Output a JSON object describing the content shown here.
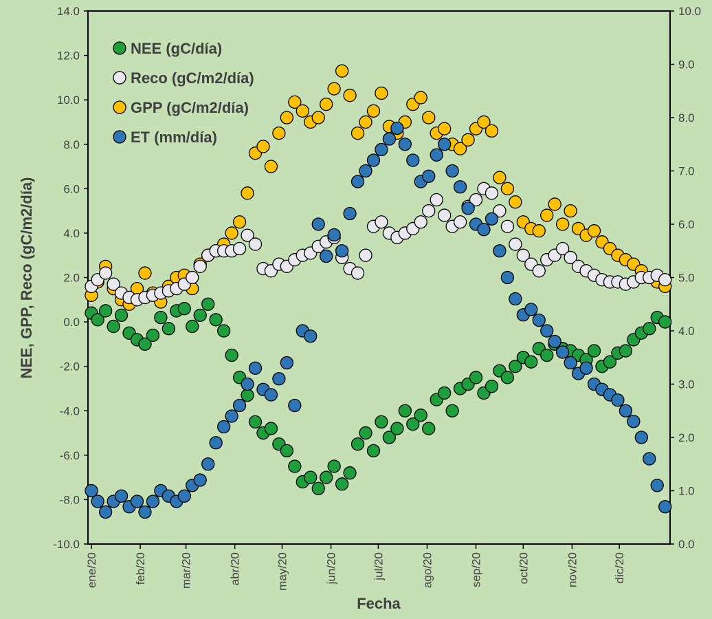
{
  "chart_data": {
    "type": "scatter",
    "title": "",
    "xlabel": "Fecha",
    "ylabel": "NEE, GPP, Reco (gC/m2/día)",
    "y2label": "",
    "x_unit": "day of year 2020",
    "xlim": [
      1,
      366
    ],
    "ylim": [
      -10,
      14
    ],
    "y2lim": [
      0,
      10
    ],
    "y_ticks": [
      "14.0",
      "12.0",
      "10.0",
      "8.0",
      "6.0",
      "4.0",
      "2.0",
      "0.0",
      "-2.0",
      "-4.0",
      "-6.0",
      "-8.0",
      "-10.0"
    ],
    "y2_ticks": [
      "10.0",
      "9.0",
      "8.0",
      "7.0",
      "6.0",
      "5.0",
      "4.0",
      "3.0",
      "2.0",
      "1.0",
      "0.0"
    ],
    "x_ticks": [
      "ene/20",
      "feb/20",
      "mar/20",
      "abr/20",
      "may/20",
      "jun/20",
      "jul/20",
      "ago/20",
      "sep/20",
      "oct/20",
      "nov/20",
      "dic/20"
    ],
    "x_tick_days": [
      1,
      32,
      61,
      92,
      122,
      153,
      183,
      214,
      245,
      275,
      306,
      336
    ],
    "grid": false,
    "legend_position": "top-left",
    "series": [
      {
        "name": "NEE (gC/día)",
        "color": "#1f9e3e",
        "axis": "left",
        "x": [
          1,
          5,
          10,
          15,
          20,
          25,
          30,
          35,
          40,
          45,
          50,
          55,
          60,
          65,
          70,
          75,
          80,
          85,
          90,
          95,
          100,
          105,
          110,
          115,
          120,
          125,
          130,
          135,
          140,
          145,
          150,
          155,
          160,
          165,
          170,
          175,
          180,
          185,
          190,
          195,
          200,
          205,
          210,
          215,
          220,
          225,
          230,
          235,
          240,
          245,
          250,
          255,
          260,
          265,
          270,
          275,
          280,
          285,
          290,
          295,
          300,
          305,
          310,
          315,
          320,
          325,
          330,
          335,
          340,
          345,
          350,
          355,
          360,
          365
        ],
        "y": [
          0.4,
          0.1,
          0.5,
          -0.2,
          0.3,
          -0.5,
          -0.8,
          -1.0,
          -0.6,
          0.2,
          -0.3,
          0.5,
          0.6,
          -0.2,
          0.3,
          0.8,
          0.1,
          -0.4,
          -1.5,
          -2.5,
          -3.3,
          -4.5,
          -5.0,
          -4.8,
          -5.5,
          -5.8,
          -6.5,
          -7.2,
          -7.0,
          -7.5,
          -7.0,
          -6.5,
          -7.3,
          -6.8,
          -5.5,
          -5.0,
          -5.8,
          -4.5,
          -5.2,
          -4.8,
          -4.0,
          -4.6,
          -4.2,
          -4.8,
          -3.5,
          -3.2,
          -4.0,
          -3.0,
          -2.8,
          -2.5,
          -3.2,
          -2.9,
          -2.2,
          -2.5,
          -2.0,
          -1.6,
          -1.8,
          -1.2,
          -1.5,
          -1.0,
          -1.2,
          -1.3,
          -1.5,
          -1.7,
          -1.3,
          -2.0,
          -1.8,
          -1.4,
          -1.3,
          -0.8,
          -0.5,
          -0.3,
          0.2,
          0.0
        ]
      },
      {
        "name": "Reco (gC/m2/día)",
        "color": "#e8e8ee",
        "axis": "left",
        "x": [
          1,
          5,
          10,
          15,
          20,
          25,
          30,
          35,
          40,
          45,
          50,
          55,
          60,
          65,
          70,
          75,
          80,
          85,
          90,
          95,
          100,
          105,
          110,
          115,
          120,
          125,
          130,
          135,
          140,
          145,
          150,
          155,
          160,
          165,
          170,
          175,
          180,
          185,
          190,
          195,
          200,
          205,
          210,
          215,
          220,
          225,
          230,
          235,
          240,
          245,
          250,
          255,
          260,
          265,
          270,
          275,
          280,
          285,
          290,
          295,
          300,
          305,
          310,
          315,
          320,
          325,
          330,
          335,
          340,
          345,
          350,
          355,
          360,
          365
        ],
        "y": [
          1.6,
          1.9,
          2.2,
          1.7,
          1.3,
          1.1,
          1.0,
          1.1,
          1.2,
          1.3,
          1.4,
          1.5,
          1.7,
          2.0,
          2.5,
          3.0,
          3.2,
          3.2,
          3.2,
          3.3,
          3.9,
          3.5,
          2.4,
          2.3,
          2.6,
          2.5,
          2.8,
          3.0,
          3.1,
          3.4,
          3.6,
          3.8,
          2.9,
          2.4,
          2.2,
          3.0,
          4.3,
          4.5,
          4.0,
          3.8,
          4.0,
          4.2,
          4.5,
          5.0,
          5.5,
          4.8,
          4.3,
          4.5,
          5.2,
          5.5,
          6.0,
          5.8,
          5.0,
          4.3,
          3.5,
          3.0,
          2.6,
          2.3,
          2.8,
          3.0,
          3.3,
          2.9,
          2.5,
          2.3,
          2.1,
          1.9,
          1.8,
          1.8,
          1.7,
          1.8,
          2.0,
          2.0,
          2.1,
          1.9
        ]
      },
      {
        "name": "GPP (gC/m2/día)",
        "color": "#ffc000",
        "axis": "left",
        "x": [
          1,
          5,
          10,
          15,
          20,
          25,
          30,
          35,
          40,
          45,
          50,
          55,
          60,
          65,
          70,
          75,
          80,
          85,
          90,
          95,
          100,
          105,
          110,
          115,
          120,
          125,
          130,
          135,
          140,
          145,
          150,
          155,
          160,
          165,
          170,
          175,
          180,
          185,
          190,
          195,
          200,
          205,
          210,
          215,
          220,
          225,
          230,
          235,
          240,
          245,
          250,
          255,
          260,
          265,
          270,
          275,
          280,
          285,
          290,
          295,
          300,
          305,
          310,
          315,
          320,
          325,
          330,
          335,
          340,
          345,
          350,
          355,
          360,
          365
        ],
        "y": [
          1.2,
          1.8,
          2.5,
          1.5,
          1.0,
          0.8,
          1.5,
          2.2,
          1.3,
          0.9,
          1.6,
          2.0,
          2.1,
          1.5,
          2.6,
          3.0,
          3.2,
          3.5,
          4.0,
          4.5,
          5.8,
          7.6,
          7.9,
          7.0,
          8.5,
          9.2,
          9.9,
          9.5,
          9.0,
          9.2,
          9.8,
          10.5,
          11.3,
          10.2,
          8.5,
          9.0,
          9.5,
          10.3,
          8.8,
          8.5,
          9.0,
          9.8,
          10.1,
          9.2,
          8.5,
          8.7,
          8.0,
          7.8,
          8.2,
          8.7,
          9.0,
          8.6,
          6.5,
          6.0,
          5.4,
          4.5,
          4.2,
          4.1,
          4.8,
          5.3,
          4.4,
          5.0,
          4.2,
          3.9,
          4.1,
          3.6,
          3.3,
          3.0,
          2.8,
          2.6,
          2.3,
          2.0,
          1.8,
          1.6
        ]
      },
      {
        "name": "ET (mm/día)",
        "color": "#2e75b6",
        "axis": "right",
        "x": [
          1,
          5,
          10,
          15,
          20,
          25,
          30,
          35,
          40,
          45,
          50,
          55,
          60,
          65,
          70,
          75,
          80,
          85,
          90,
          95,
          100,
          105,
          110,
          115,
          120,
          125,
          130,
          135,
          140,
          145,
          150,
          155,
          160,
          165,
          170,
          175,
          180,
          185,
          190,
          195,
          200,
          205,
          210,
          215,
          220,
          225,
          230,
          235,
          240,
          245,
          250,
          255,
          260,
          265,
          270,
          275,
          280,
          285,
          290,
          295,
          300,
          305,
          310,
          315,
          320,
          325,
          330,
          335,
          340,
          345,
          350,
          355,
          360,
          365
        ],
        "y": [
          1.0,
          0.8,
          0.6,
          0.8,
          0.9,
          0.7,
          0.8,
          0.6,
          0.8,
          1.0,
          0.9,
          0.8,
          0.9,
          1.1,
          1.2,
          1.5,
          1.9,
          2.2,
          2.4,
          2.6,
          3.0,
          3.3,
          2.9,
          2.8,
          3.1,
          3.4,
          2.6,
          4.0,
          3.9,
          6.0,
          5.4,
          5.8,
          5.5,
          6.2,
          6.8,
          7.0,
          7.2,
          7.4,
          7.6,
          7.8,
          7.5,
          7.2,
          6.8,
          6.9,
          7.3,
          7.5,
          7.0,
          6.7,
          6.3,
          6.0,
          5.9,
          6.1,
          5.5,
          5.0,
          4.6,
          4.3,
          4.4,
          4.2,
          4.0,
          3.8,
          3.6,
          3.4,
          3.2,
          3.3,
          3.0,
          2.9,
          2.8,
          2.7,
          2.5,
          2.3,
          2.0,
          1.6,
          1.1,
          0.7
        ]
      }
    ]
  }
}
